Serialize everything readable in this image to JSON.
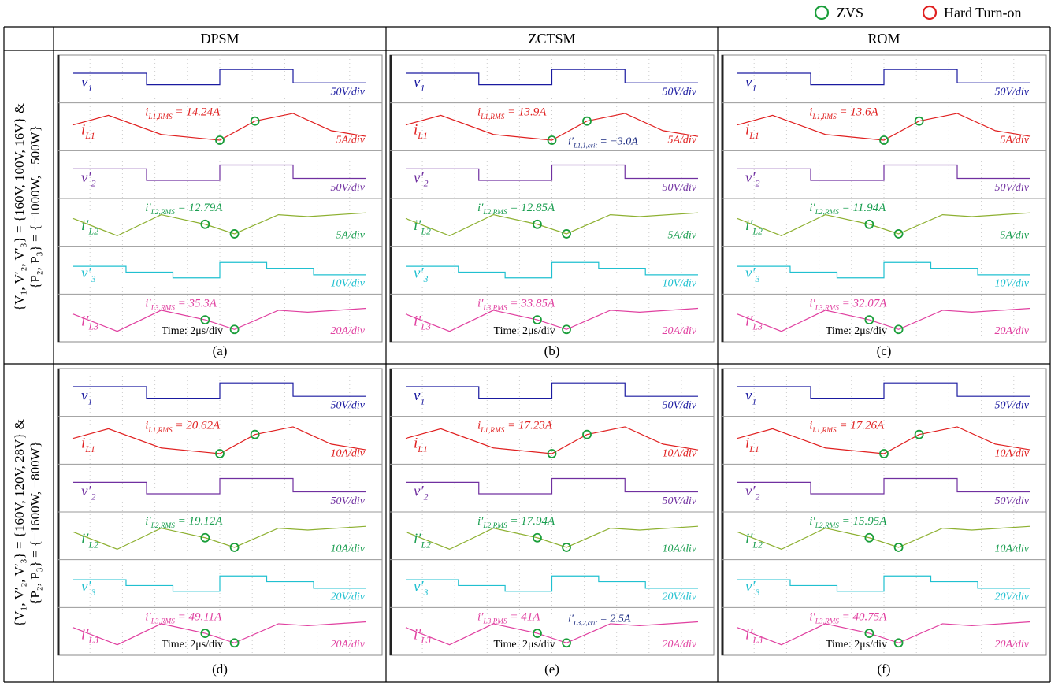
{
  "legend": [
    {
      "label": "ZVS",
      "color": "#1a9e3a"
    },
    {
      "label": "Hard Turn-on",
      "color": "#e02020"
    }
  ],
  "columns": [
    "DPSM",
    "ZCTSM",
    "ROM"
  ],
  "rows": [
    {
      "label": [
        "{V₁, V′₂, V′₃} = {160V, 100V, 16V} &",
        "{P₂, P₃} = {−1000W, −500W}"
      ],
      "panels": [
        {
          "caption": "(a)",
          "time": "Time: 2μs/div",
          "channels": [
            {
              "name": {
                "main": "v",
                "sub": "1"
              },
              "scale": "50V/div",
              "color": "#1a1aa0"
            },
            {
              "name": {
                "main": "i",
                "sub": "L1"
              },
              "scale": "5A/div",
              "color": "#e02020",
              "rms": {
                "main": "i",
                "sub": "L1,RMS",
                "rest": " = 14.24A"
              }
            },
            {
              "name": {
                "main": "v′",
                "sub": "2"
              },
              "scale": "50V/div",
              "color": "#7030a0"
            },
            {
              "name": {
                "main": "i′",
                "sub": "L2"
              },
              "scale": "5A/div",
              "color": "#1a9e50",
              "rms": {
                "main": "i′",
                "sub": "L2,RMS",
                "rest": " = 12.79A"
              }
            },
            {
              "name": {
                "main": "v′",
                "sub": "3"
              },
              "scale": "10V/div",
              "color": "#20c0d0"
            },
            {
              "name": {
                "main": "i′",
                "sub": "L3"
              },
              "scale": "20A/div",
              "color": "#e040a0",
              "rms": {
                "main": "i′",
                "sub": "L3,RMS",
                "rest": " = 35.3A"
              }
            }
          ]
        },
        {
          "caption": "(b)",
          "time": "Time: 2μs/div",
          "channels": [
            {
              "name": {
                "main": "v",
                "sub": "1"
              },
              "scale": "50V/div",
              "color": "#1a1aa0"
            },
            {
              "name": {
                "main": "i",
                "sub": "L1"
              },
              "scale": "5A/div",
              "color": "#e02020",
              "rms": {
                "main": "i",
                "sub": "L1,RMS",
                "rest": " = 13.9A"
              },
              "crit": {
                "main": "i′",
                "sub": "L1,1,crit",
                "rest": " = −3.0A"
              }
            },
            {
              "name": {
                "main": "v′",
                "sub": "2"
              },
              "scale": "50V/div",
              "color": "#7030a0"
            },
            {
              "name": {
                "main": "i′",
                "sub": "L2"
              },
              "scale": "5A/div",
              "color": "#1a9e50",
              "rms": {
                "main": "i′",
                "sub": "L2,RMS",
                "rest": " = 12.85A"
              }
            },
            {
              "name": {
                "main": "v′",
                "sub": "3"
              },
              "scale": "10V/div",
              "color": "#20c0d0"
            },
            {
              "name": {
                "main": "i′",
                "sub": "L3"
              },
              "scale": "20A/div",
              "color": "#e040a0",
              "rms": {
                "main": "i′",
                "sub": "L3,RMS",
                "rest": " = 33.85A"
              }
            }
          ]
        },
        {
          "caption": "(c)",
          "time": "Time: 2μs/div",
          "channels": [
            {
              "name": {
                "main": "v",
                "sub": "1"
              },
              "scale": "50V/div",
              "color": "#1a1aa0"
            },
            {
              "name": {
                "main": "i",
                "sub": "L1"
              },
              "scale": "5A/div",
              "color": "#e02020",
              "rms": {
                "main": "i",
                "sub": "L1,RMS",
                "rest": " = 13.6A"
              }
            },
            {
              "name": {
                "main": "v′",
                "sub": "2"
              },
              "scale": "50V/div",
              "color": "#7030a0"
            },
            {
              "name": {
                "main": "i′",
                "sub": "L2"
              },
              "scale": "5A/div",
              "color": "#1a9e50",
              "rms": {
                "main": "i′",
                "sub": "L2,RMS",
                "rest": " = 11.94A"
              }
            },
            {
              "name": {
                "main": "v′",
                "sub": "3"
              },
              "scale": "10V/div",
              "color": "#20c0d0"
            },
            {
              "name": {
                "main": "i′",
                "sub": "L3"
              },
              "scale": "20A/div",
              "color": "#e040a0",
              "rms": {
                "main": "i′",
                "sub": "L3,RMS",
                "rest": " = 32.07A"
              }
            }
          ]
        }
      ]
    },
    {
      "label": [
        "{V₁, V′₂, V′₃} = {160V, 120V, 28V} &",
        "{P₂, P₃} = {−1600W, −800W}"
      ],
      "panels": [
        {
          "caption": "(d)",
          "time": "Time: 2μs/div",
          "channels": [
            {
              "name": {
                "main": "v",
                "sub": "1"
              },
              "scale": "50V/div",
              "color": "#1a1aa0"
            },
            {
              "name": {
                "main": "i",
                "sub": "L1"
              },
              "scale": "10A/div",
              "color": "#e02020",
              "rms": {
                "main": "i",
                "sub": "L1,RMS",
                "rest": " = 20.62A"
              }
            },
            {
              "name": {
                "main": "v′",
                "sub": "2"
              },
              "scale": "50V/div",
              "color": "#7030a0"
            },
            {
              "name": {
                "main": "i′",
                "sub": "L2"
              },
              "scale": "10A/div",
              "color": "#1a9e50",
              "rms": {
                "main": "i′",
                "sub": "L2,RMS",
                "rest": " = 19.12A"
              }
            },
            {
              "name": {
                "main": "v′",
                "sub": "3"
              },
              "scale": "20V/div",
              "color": "#20c0d0"
            },
            {
              "name": {
                "main": "i′",
                "sub": "L3"
              },
              "scale": "20A/div",
              "color": "#e040a0",
              "rms": {
                "main": "i′",
                "sub": "L3,RMS",
                "rest": " = 49.11A"
              }
            }
          ]
        },
        {
          "caption": "(e)",
          "time": "Time: 2μs/div",
          "channels": [
            {
              "name": {
                "main": "v",
                "sub": "1"
              },
              "scale": "50V/div",
              "color": "#1a1aa0"
            },
            {
              "name": {
                "main": "i",
                "sub": "L1"
              },
              "scale": "10A/div",
              "color": "#e02020",
              "rms": {
                "main": "i",
                "sub": "L1,RMS",
                "rest": " = 17.23A"
              }
            },
            {
              "name": {
                "main": "v′",
                "sub": "2"
              },
              "scale": "50V/div",
              "color": "#7030a0"
            },
            {
              "name": {
                "main": "i′",
                "sub": "L2"
              },
              "scale": "10A/div",
              "color": "#1a9e50",
              "rms": {
                "main": "i′",
                "sub": "L2,RMS",
                "rest": " = 17.94A"
              }
            },
            {
              "name": {
                "main": "v′",
                "sub": "3"
              },
              "scale": "20V/div",
              "color": "#20c0d0"
            },
            {
              "name": {
                "main": "i′",
                "sub": "L3"
              },
              "scale": "20A/div",
              "color": "#e040a0",
              "rms": {
                "main": "i′",
                "sub": "L3,RMS",
                "rest": " = 41A"
              },
              "crit": {
                "main": "i′",
                "sub": "L3,2,crit",
                "rest": " = 2.5A"
              }
            }
          ]
        },
        {
          "caption": "(f)",
          "time": "Time: 2μs/div",
          "channels": [
            {
              "name": {
                "main": "v",
                "sub": "1"
              },
              "scale": "50V/div",
              "color": "#1a1aa0"
            },
            {
              "name": {
                "main": "i",
                "sub": "L1"
              },
              "scale": "10A/div",
              "color": "#e02020",
              "rms": {
                "main": "i",
                "sub": "L1,RMS",
                "rest": " = 17.26A"
              }
            },
            {
              "name": {
                "main": "v′",
                "sub": "2"
              },
              "scale": "50V/div",
              "color": "#7030a0"
            },
            {
              "name": {
                "main": "i′",
                "sub": "L2"
              },
              "scale": "10A/div",
              "color": "#1a9e50",
              "rms": {
                "main": "i′",
                "sub": "L2,RMS",
                "rest": " = 15.95A"
              }
            },
            {
              "name": {
                "main": "v′",
                "sub": "3"
              },
              "scale": "20V/div",
              "color": "#20c0d0"
            },
            {
              "name": {
                "main": "i′",
                "sub": "L3"
              },
              "scale": "20A/div",
              "color": "#e040a0",
              "rms": {
                "main": "i′",
                "sub": "L3,RMS",
                "rest": " = 40.75A"
              }
            }
          ]
        }
      ]
    }
  ]
}
